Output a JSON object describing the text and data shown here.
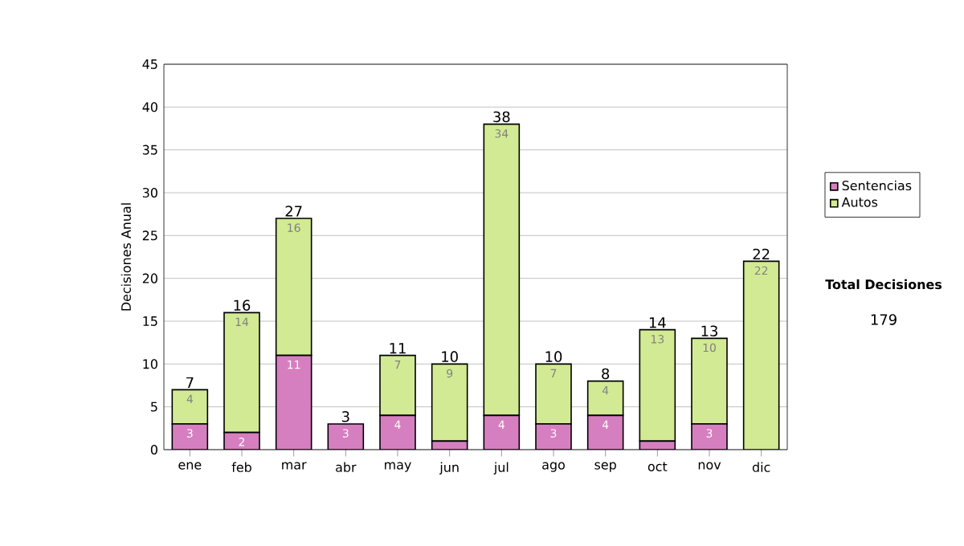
{
  "chart_data": {
    "type": "bar",
    "stacked": true,
    "ylabel": "Decisiones Anual",
    "categories": [
      "ene",
      "feb",
      "mar",
      "abr",
      "may",
      "jun",
      "jul",
      "ago",
      "sep",
      "oct",
      "nov",
      "dic"
    ],
    "series": [
      {
        "name": "Sentencias",
        "color": "#d67fc0",
        "values": [
          3,
          2,
          11,
          3,
          4,
          1,
          4,
          3,
          4,
          1,
          3,
          0
        ],
        "value_labels": [
          "3",
          "2",
          "11",
          "3",
          "4",
          null,
          "4",
          "3",
          "4",
          null,
          "3",
          null
        ]
      },
      {
        "name": "Autos",
        "color": "#d2ea94",
        "values": [
          4,
          14,
          16,
          0,
          7,
          9,
          34,
          7,
          4,
          13,
          10,
          22
        ],
        "value_labels": [
          "4",
          "14",
          "16",
          null,
          "7",
          "9",
          "34",
          "7",
          "4",
          "13",
          "10",
          "22"
        ]
      }
    ],
    "totals": [
      "7",
      "16",
      "27",
      "3",
      "11",
      "10",
      "38",
      "10",
      "8",
      "14",
      "13",
      "22"
    ],
    "ylim": [
      0,
      45
    ],
    "yticks": [
      0,
      5,
      10,
      15,
      20,
      25,
      30,
      35,
      40,
      45
    ],
    "grid": "y",
    "legend": "right",
    "annotations": [
      "Total Decisiones",
      "179"
    ]
  }
}
